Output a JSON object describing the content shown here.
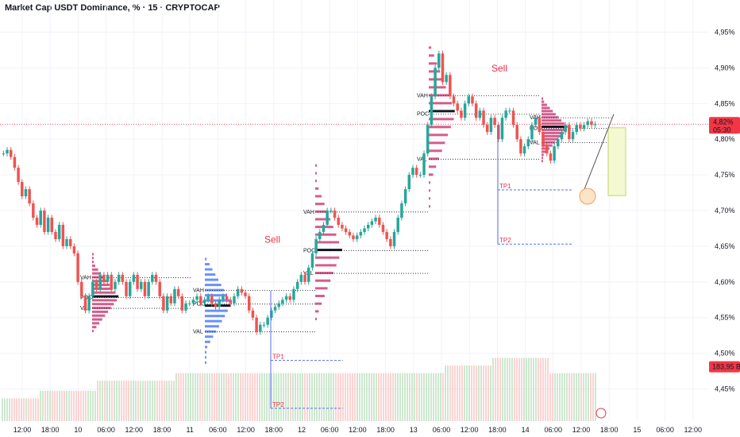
{
  "header": {
    "title": "Market Cap USDT Dominance, % · 15 · CRYPTOCAP",
    "scale_button": "%"
  },
  "colors": {
    "up": "#26a69a",
    "down": "#ef5350",
    "vp_red": "#c2185b",
    "vp_blue": "#2962ff",
    "price_tag": "#f23645",
    "level_line": "#131722"
  },
  "chart_data": {
    "type": "candlestick",
    "title": "Market Cap USDT Dominance, % · 15 · CRYPTOCAP",
    "y_ticks": [
      "4,95%",
      "4,90%",
      "4,85%",
      "4,80%",
      "4,75%",
      "4,70%",
      "4,65%",
      "4,60%",
      "4,55%",
      "4,50%",
      "4,45%"
    ],
    "y_tick_values": [
      4.95,
      4.9,
      4.85,
      4.8,
      4.75,
      4.7,
      4.65,
      4.6,
      4.55,
      4.5,
      4.45
    ],
    "ylim": [
      4.405,
      4.995
    ],
    "x_ticks": [
      "12:00",
      "18:00",
      "10",
      "06:00",
      "12:00",
      "18:00",
      "11",
      "06:00",
      "12:00",
      "18:00",
      "12",
      "06:00",
      "12:00",
      "18:00",
      "13",
      "06:00",
      "12:00",
      "18:00",
      "14",
      "06:00",
      "12:00",
      "18:00",
      "15",
      "06:00",
      "12:00"
    ],
    "current_price": {
      "label": "4,82%",
      "timer": "05:30",
      "value": 4.821
    },
    "volume_label": "183,95 B",
    "price_path": [
      [
        4.78,
        4.785,
        4.775,
        4.76,
        4.74,
        4.72,
        4.73,
        4.71,
        4.69,
        4.68,
        4.7,
        4.67,
        4.69,
        4.67,
        4.66,
        4.68,
        4.65,
        4.66,
        4.65,
        4.64,
        4.6,
        4.58,
        4.56,
        4.58,
        4.6,
        4.59,
        4.61,
        4.6,
        4.61,
        4.59
      ],
      [
        4.6,
        4.61,
        4.6,
        4.58,
        4.6,
        4.61,
        4.59,
        4.6,
        4.58,
        4.6,
        4.61,
        4.6,
        4.58,
        4.56,
        4.58,
        4.57,
        4.59,
        4.58,
        4.56,
        4.57
      ],
      [
        4.57,
        4.575,
        4.58,
        4.57,
        4.575,
        4.58,
        4.57,
        4.565,
        4.575,
        4.58,
        4.575,
        4.57,
        4.58,
        4.59,
        4.585,
        4.58,
        4.56,
        4.55,
        4.53,
        4.54
      ],
      [
        4.54,
        4.55,
        4.56,
        4.565,
        4.57,
        4.575,
        4.58,
        4.575,
        4.59,
        4.6,
        4.61,
        4.6,
        4.62,
        4.64,
        4.66,
        4.67,
        4.68,
        4.7
      ],
      [
        4.7,
        4.69,
        4.68,
        4.675,
        4.67,
        4.665,
        4.66,
        4.665,
        4.67,
        4.675,
        4.68,
        4.685,
        4.69,
        4.68,
        4.67,
        4.66,
        4.65,
        4.67,
        4.69,
        4.71,
        4.73,
        4.75,
        4.76,
        4.75
      ],
      [
        4.75,
        4.78,
        4.82,
        4.86,
        4.9,
        4.92,
        4.88,
        4.89,
        4.86,
        4.85,
        4.84,
        4.83,
        4.85,
        4.86,
        4.85,
        4.83,
        4.84,
        4.82,
        4.81,
        4.83,
        4.82,
        4.8,
        4.83,
        4.84
      ],
      [
        4.84,
        4.82,
        4.8,
        4.78,
        4.79,
        4.8,
        4.82,
        4.83,
        4.81,
        4.79,
        4.78,
        4.77,
        4.79,
        4.8,
        4.81,
        4.82,
        4.8,
        4.81,
        4.82,
        4.815,
        4.82,
        4.825,
        4.82,
        4.821
      ]
    ],
    "sessions": [
      {
        "vah": 4.606,
        "poc": 4.578,
        "val": 4.563
      },
      {
        "vah": 4.588,
        "poc": 4.569,
        "val": 4.53
      },
      {
        "vah": 4.698,
        "poc": 4.644,
        "val": 4.612
      },
      {
        "vah": 4.861,
        "poc": 4.835,
        "val": 4.772
      },
      {
        "vah": 4.83,
        "poc": 4.815,
        "val": 4.795
      }
    ],
    "annotations": [
      {
        "text": "Sell",
        "x_index": 1
      },
      {
        "text": "Sell",
        "x_index": 2
      }
    ],
    "take_profits": [
      {
        "label": "TP1",
        "value": 4.49
      },
      {
        "label": "TP2",
        "value": 4.423
      },
      {
        "label": "TP1",
        "value": 4.729
      },
      {
        "label": "TP2",
        "value": 4.653
      }
    ],
    "vp_labels": [
      "VAH",
      "POC",
      "VAL"
    ]
  }
}
